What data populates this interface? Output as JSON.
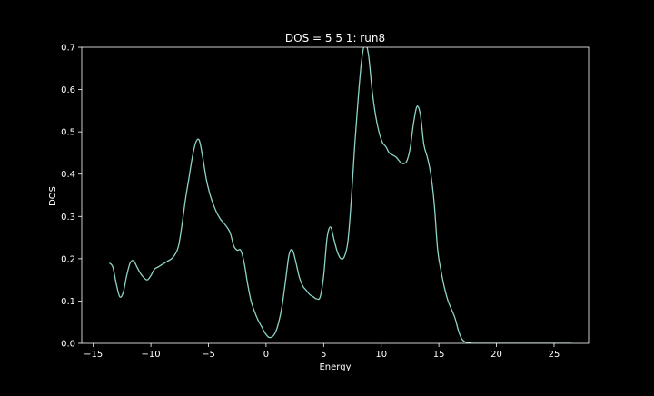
{
  "chart_data": {
    "type": "line",
    "title": "DOS =  5 5 1: run8",
    "xlabel": "Energy",
    "ylabel": "DOS",
    "xlim": [
      -16.0,
      28.0
    ],
    "ylim": [
      0.0,
      0.7
    ],
    "xticks": [
      -15,
      -10,
      -5,
      0,
      5,
      10,
      15,
      20,
      25
    ],
    "xtick_labels": [
      "−15",
      "−10",
      "−5",
      "0",
      "5",
      "10",
      "15",
      "20",
      "25"
    ],
    "yticks": [
      0.0,
      0.1,
      0.2,
      0.3,
      0.4,
      0.5,
      0.6,
      0.7
    ],
    "ytick_labels": [
      "0.0",
      "0.1",
      "0.2",
      "0.3",
      "0.4",
      "0.5",
      "0.6",
      "0.7"
    ],
    "grid": false,
    "colors": {
      "background": "#000000",
      "axes": "#ffffff",
      "line": "#8dd3c7"
    },
    "series": [
      {
        "x": [
          -13.6,
          -13.3,
          -13.0,
          -12.7,
          -12.4,
          -12.1,
          -11.8,
          -11.5,
          -11.2,
          -10.9,
          -10.6,
          -10.3,
          -10.0,
          -9.7,
          -9.4,
          -9.1,
          -8.8,
          -8.5,
          -8.2,
          -7.9,
          -7.6,
          -7.3,
          -7.0,
          -6.7,
          -6.4,
          -6.1,
          -5.8,
          -5.5,
          -5.2,
          -4.9,
          -4.6,
          -4.3,
          -4.0,
          -3.7,
          -3.4,
          -3.1,
          -2.8,
          -2.5,
          -2.2,
          -1.9,
          -1.6,
          -1.3,
          -1.0,
          -0.7,
          -0.4,
          -0.1,
          0.2,
          0.5,
          0.8,
          1.1,
          1.4,
          1.7,
          2.0,
          2.3,
          2.6,
          2.9,
          3.2,
          3.5,
          3.8,
          4.1,
          4.4,
          4.7,
          5.0,
          5.3,
          5.6,
          5.9,
          6.2,
          6.5,
          6.8,
          7.1,
          7.4,
          7.7,
          8.0,
          8.3,
          8.6,
          8.9,
          9.2,
          9.5,
          9.8,
          10.1,
          10.4,
          10.7,
          11.0,
          11.3,
          11.6,
          11.9,
          12.2,
          12.5,
          12.8,
          13.1,
          13.4,
          13.7,
          14.0,
          14.3,
          14.6,
          14.9,
          15.2,
          15.5,
          15.8,
          16.1,
          16.4,
          16.7,
          17.0,
          17.3,
          17.6,
          17.9,
          18.2,
          18.5,
          19.0,
          20.0,
          22.0,
          24.0,
          26.5
        ],
        "y": [
          0.19,
          0.18,
          0.14,
          0.11,
          0.12,
          0.16,
          0.19,
          0.195,
          0.18,
          0.165,
          0.155,
          0.15,
          0.16,
          0.175,
          0.18,
          0.185,
          0.19,
          0.195,
          0.2,
          0.21,
          0.23,
          0.28,
          0.34,
          0.39,
          0.44,
          0.475,
          0.48,
          0.44,
          0.39,
          0.355,
          0.33,
          0.31,
          0.295,
          0.285,
          0.275,
          0.26,
          0.23,
          0.22,
          0.22,
          0.19,
          0.14,
          0.1,
          0.075,
          0.055,
          0.04,
          0.025,
          0.015,
          0.015,
          0.025,
          0.05,
          0.09,
          0.15,
          0.21,
          0.22,
          0.19,
          0.155,
          0.135,
          0.125,
          0.115,
          0.11,
          0.105,
          0.11,
          0.16,
          0.25,
          0.275,
          0.245,
          0.215,
          0.2,
          0.205,
          0.24,
          0.34,
          0.47,
          0.58,
          0.67,
          0.71,
          0.68,
          0.6,
          0.54,
          0.5,
          0.475,
          0.465,
          0.45,
          0.445,
          0.44,
          0.43,
          0.425,
          0.43,
          0.46,
          0.52,
          0.56,
          0.54,
          0.47,
          0.44,
          0.4,
          0.33,
          0.22,
          0.17,
          0.13,
          0.1,
          0.08,
          0.06,
          0.03,
          0.01,
          0.003,
          0.001,
          0.0,
          0.0,
          0.0,
          0.0,
          0.0,
          0.0,
          0.0,
          0.0
        ]
      }
    ]
  }
}
